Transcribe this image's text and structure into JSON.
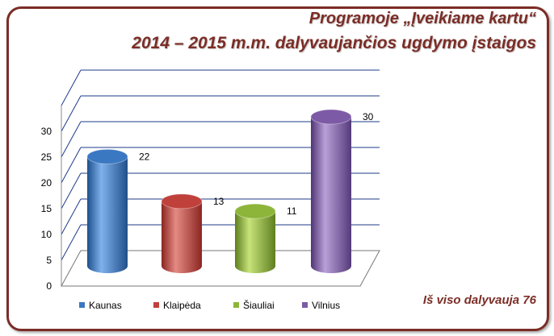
{
  "title": {
    "line1": "Programoje „Įveikiame kartu“",
    "line2": "2014 – 2015 m.m. dalyvaujančios ugdymo įstaigos"
  },
  "footer": "Iš viso dalyvauja 76",
  "chart_data": {
    "type": "bar",
    "style": "3d-cylinder",
    "categories": [
      "Kaunas",
      "Klaipėda",
      "Šiauliai",
      "Vilnius"
    ],
    "values": [
      22,
      13,
      11,
      30
    ],
    "colors": [
      "#3a78c2",
      "#c0413c",
      "#8db53a",
      "#7d5aa6"
    ],
    "ylim": [
      0,
      30
    ],
    "yticks": [
      0,
      5,
      10,
      15,
      20,
      25,
      30
    ],
    "grid": true,
    "legend": "bottom"
  }
}
